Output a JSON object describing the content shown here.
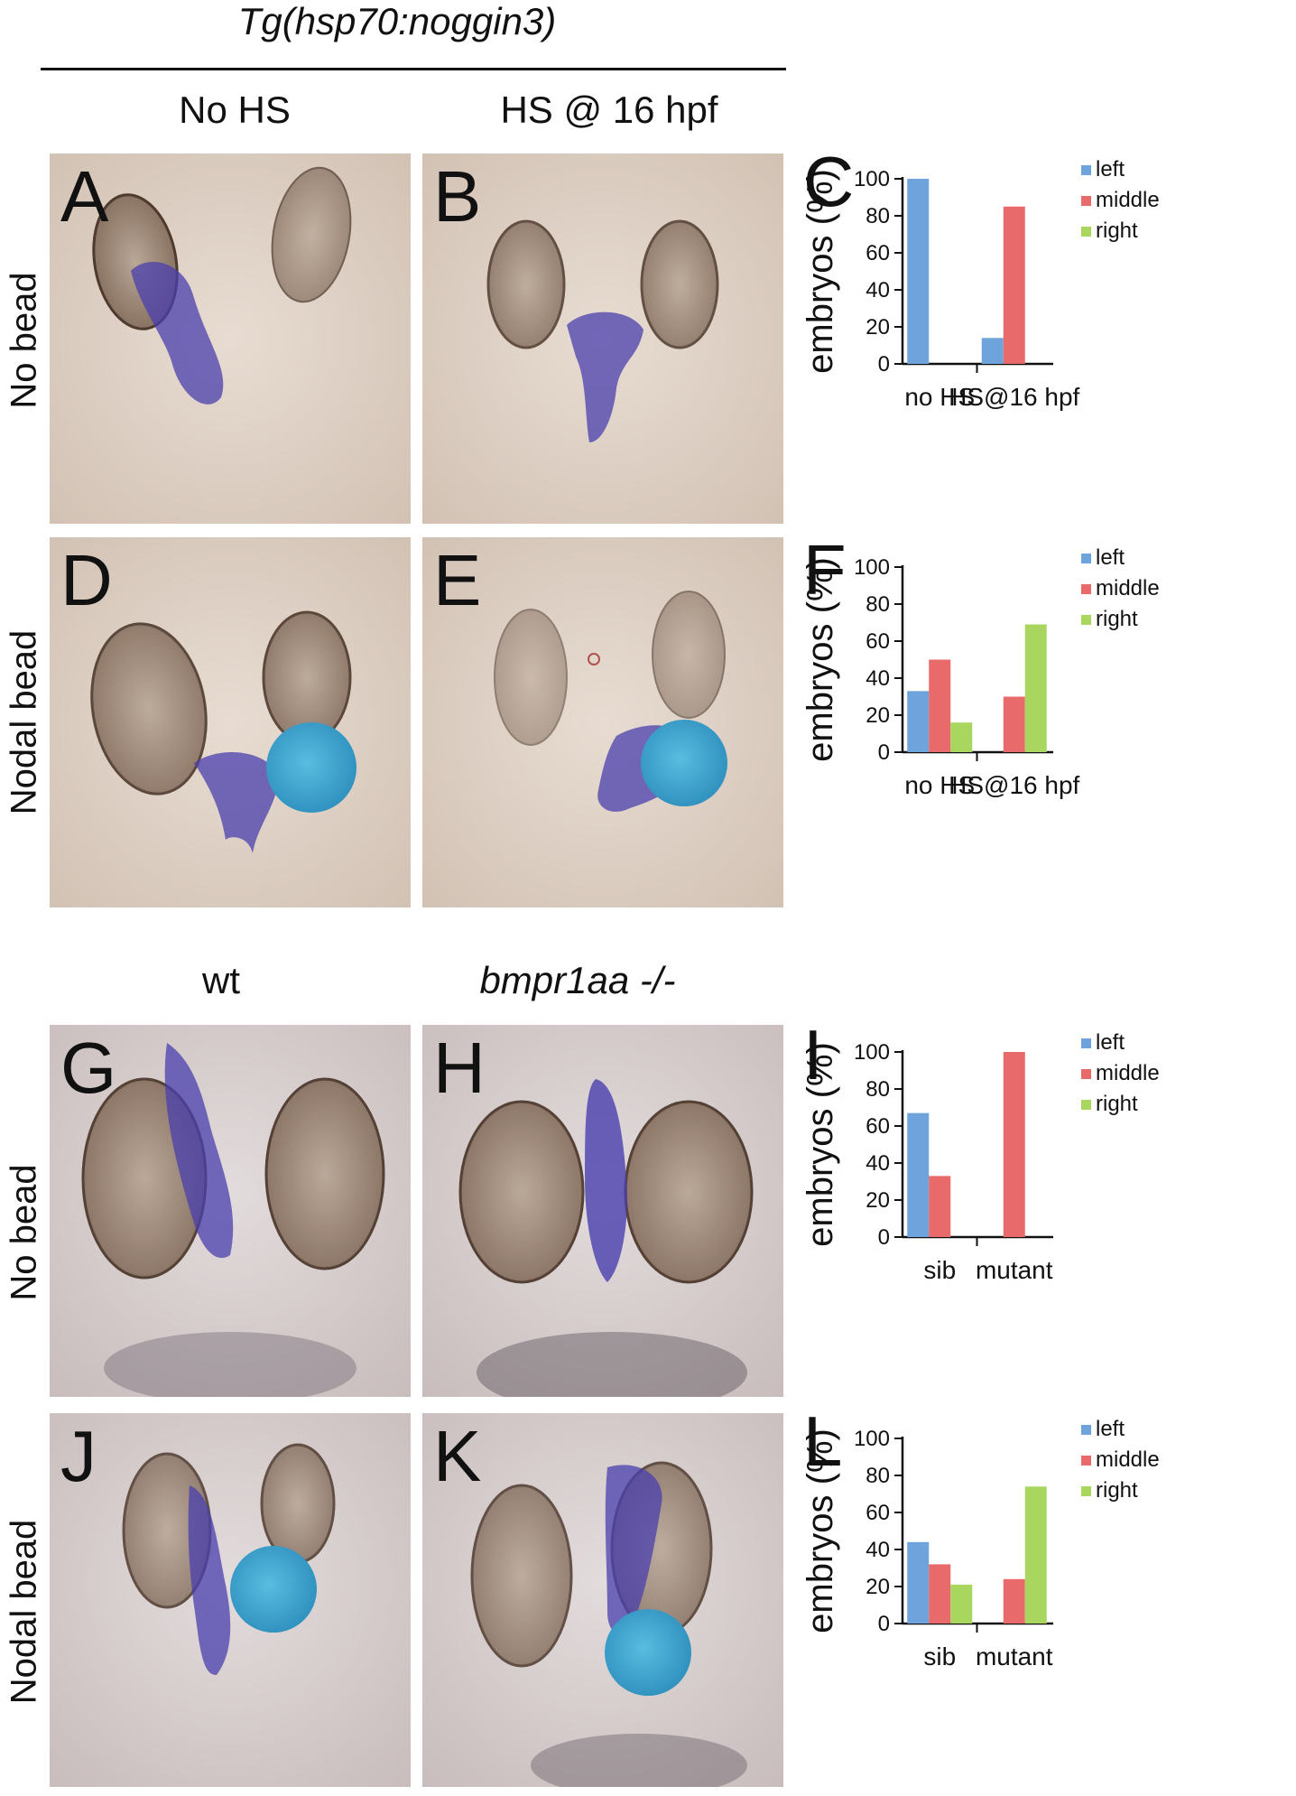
{
  "headers": {
    "top_title": "Tg(hsp70:noggin3)",
    "col_no_hs": "No HS",
    "col_hs": "HS @ 16 hpf",
    "col_wt": "wt",
    "col_mut": "bmpr1aa -/-"
  },
  "row_labels": {
    "r1": "No bead",
    "r2": "Nodal bead",
    "r3": "No bead",
    "r4": "Nodal bead"
  },
  "panels": {
    "A": "A",
    "B": "B",
    "D": "D",
    "E": "E",
    "G": "G",
    "H": "H",
    "J": "J",
    "K": "K"
  },
  "colors": {
    "left": "#6fa3dc",
    "middle": "#e86a6a",
    "right": "#a9d65e",
    "embryo_bg": "#d8c9bd",
    "stain": "#4a3fae",
    "bead": "#3ea9cf",
    "eye": "#5a4638"
  },
  "chart_data": [
    {
      "panel": "C",
      "type": "bar",
      "categories": [
        "no HS",
        "HS@16 hpf"
      ],
      "series": [
        {
          "name": "left",
          "values": [
            100,
            14
          ]
        },
        {
          "name": "middle",
          "values": [
            0,
            85
          ]
        },
        {
          "name": "right",
          "values": [
            0,
            0
          ]
        }
      ],
      "ylabel": "embryos (%)",
      "ylim": [
        0,
        100
      ],
      "yticks": [
        "0",
        "20",
        "40",
        "60",
        "80",
        "100"
      ],
      "legend": "top-right"
    },
    {
      "panel": "F",
      "type": "bar",
      "categories": [
        "no HS",
        "HS@16 hpf"
      ],
      "series": [
        {
          "name": "left",
          "values": [
            33,
            0
          ]
        },
        {
          "name": "middle",
          "values": [
            50,
            30
          ]
        },
        {
          "name": "right",
          "values": [
            16,
            69
          ]
        }
      ],
      "ylabel": "embryos (%)",
      "ylim": [
        0,
        100
      ],
      "yticks": [
        "0",
        "20",
        "40",
        "60",
        "80",
        "100"
      ],
      "legend": "top-right"
    },
    {
      "panel": "I",
      "type": "bar",
      "categories": [
        "sib",
        "mutant"
      ],
      "series": [
        {
          "name": "left",
          "values": [
            67,
            0
          ]
        },
        {
          "name": "middle",
          "values": [
            33,
            100
          ]
        },
        {
          "name": "right",
          "values": [
            0,
            0
          ]
        }
      ],
      "ylabel": "embryos (%)",
      "ylim": [
        0,
        100
      ],
      "yticks": [
        "0",
        "20",
        "40",
        "60",
        "80",
        "100"
      ],
      "legend": "top-right"
    },
    {
      "panel": "L",
      "type": "bar",
      "categories": [
        "sib",
        "mutant"
      ],
      "series": [
        {
          "name": "left",
          "values": [
            44,
            0
          ]
        },
        {
          "name": "middle",
          "values": [
            32,
            24
          ]
        },
        {
          "name": "right",
          "values": [
            21,
            74
          ]
        }
      ],
      "ylabel": "embryos (%)",
      "ylim": [
        0,
        100
      ],
      "yticks": [
        "0",
        "20",
        "40",
        "60",
        "80",
        "100"
      ],
      "legend": "top-right"
    }
  ]
}
